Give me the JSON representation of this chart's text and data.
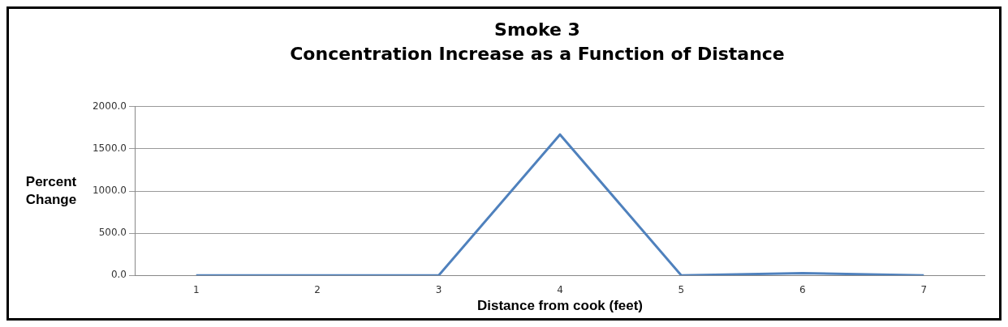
{
  "chart_data": {
    "type": "line",
    "title": "Smoke 3",
    "subtitle": "Concentration Increase as a Function of Distance",
    "xlabel": "Distance from cook (feet)",
    "ylabel": "Percent Change",
    "categories": [
      "1",
      "2",
      "3",
      "4",
      "5",
      "6",
      "7"
    ],
    "series": [
      {
        "color": "#4f81bd",
        "values": [
          0,
          0,
          0,
          1670,
          0,
          25,
          0
        ]
      }
    ],
    "ylim": [
      0,
      2000
    ],
    "yticks": [
      {
        "value": 0,
        "label": "0.0"
      },
      {
        "value": 500,
        "label": "500.0"
      },
      {
        "value": 1000,
        "label": "1000.0"
      },
      {
        "value": 1500,
        "label": "1500.0"
      },
      {
        "value": 2000,
        "label": "2000.0"
      }
    ],
    "grid": "y",
    "legend": false,
    "marker": "none",
    "line_style": "solid"
  }
}
